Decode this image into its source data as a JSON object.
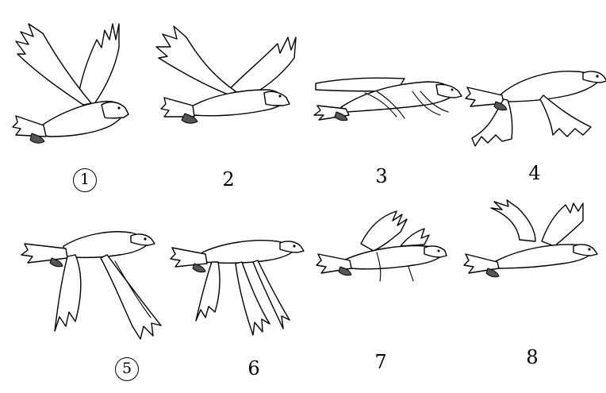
{
  "figure": {
    "frames": [
      {
        "label": "1",
        "circled": true,
        "pose": "wings-up"
      },
      {
        "label": "2",
        "circled": false,
        "pose": "wings-up-open"
      },
      {
        "label": "3",
        "circled": false,
        "pose": "wings-level"
      },
      {
        "label": "4",
        "circled": false,
        "pose": "wings-down-start"
      },
      {
        "label": "5",
        "circled": true,
        "pose": "wings-down"
      },
      {
        "label": "6",
        "circled": false,
        "pose": "wings-down-full"
      },
      {
        "label": "7",
        "circled": false,
        "pose": "wings-recover"
      },
      {
        "label": "8",
        "circled": false,
        "pose": "wings-up-return"
      }
    ],
    "icons": [
      "eagle-flight-frame-icon"
    ]
  }
}
